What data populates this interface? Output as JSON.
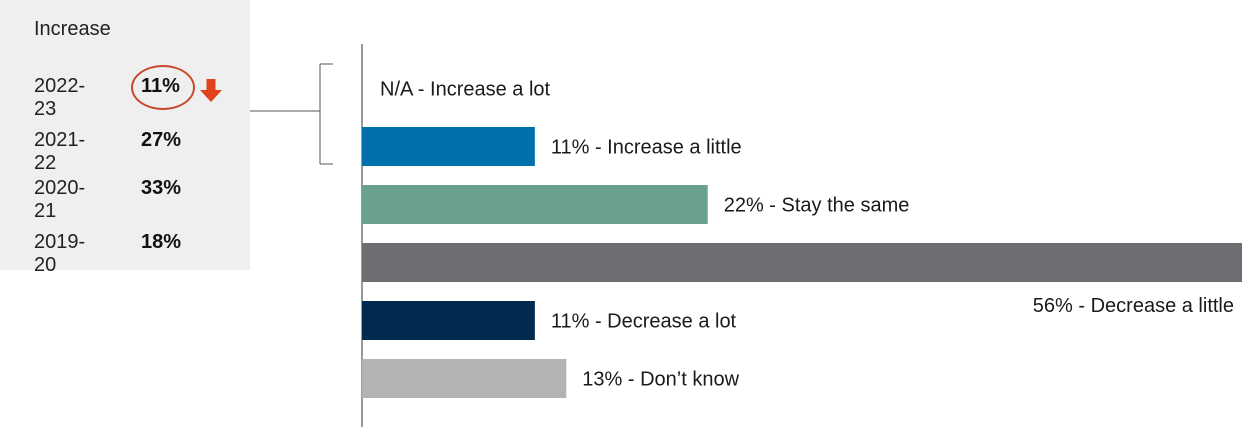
{
  "panel": {
    "title": "Increase",
    "rows": [
      {
        "year": "2022-23",
        "value": "11%"
      },
      {
        "year": "2021-22",
        "value": "27%"
      },
      {
        "year": "2020-21",
        "value": "33%"
      },
      {
        "year": "2019-20",
        "value": "18%"
      }
    ],
    "highlight_color": "#c8492a",
    "trend_icon": "down-arrow-icon"
  },
  "chart_data": {
    "type": "bar",
    "orientation": "horizontal",
    "categories": [
      "Increase a lot",
      "Increase a little",
      "Stay the same",
      "Decrease a little",
      "Decrease a lot",
      "Don’t know"
    ],
    "values": [
      null,
      11,
      22,
      56,
      11,
      13
    ],
    "labels": [
      "N/A - Increase a lot",
      "11% - Increase a little",
      "22% - Stay the same",
      "56% - Decrease a little",
      "11% - Decrease a lot",
      "13% - Don’t know"
    ],
    "colors": [
      "#ffffff",
      "#0070ad",
      "#6aa08f",
      "#6d6e71",
      "#002b4f",
      "#b3b3b3"
    ],
    "xlim": [
      0,
      56
    ]
  }
}
